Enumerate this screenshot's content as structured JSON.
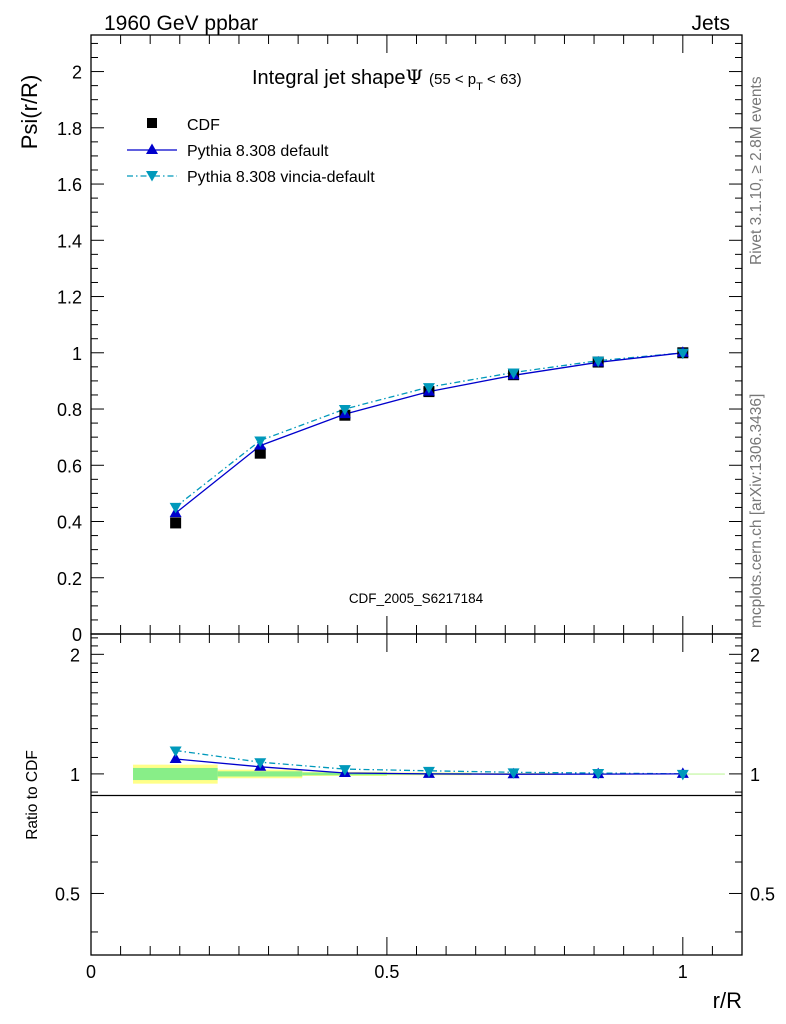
{
  "header": {
    "left": "1960 GeV ppbar",
    "right": "Jets"
  },
  "side_labels": {
    "rivet": "Rivet 3.1.10, ≥ 2.8M events",
    "mcplots": "mcplots.cern.ch [arXiv:1306.3436]"
  },
  "colors": {
    "cdf": "#000000",
    "pythia_default": "#0000cc",
    "pythia_vincia": "#0099bb",
    "band_outer": "#ffff88",
    "band_inner": "#88ee88"
  },
  "chart_data": [
    {
      "type": "line",
      "panel": "main",
      "title": "Integral jet shape Ψ (55 < p_T < 63)",
      "title_parts": {
        "main": "Integral jet shape",
        "symbol": "Ψ",
        "range_pre": "(55 < p",
        "range_sub": "T",
        "range_post": " < 63)"
      },
      "ylabel": "Psi(r/R)",
      "watermark": "CDF_2005_S6217184",
      "xlim": [
        0,
        1.1
      ],
      "ylim": [
        0,
        2.13
      ],
      "y_ticks": [
        0,
        0.2,
        0.4,
        0.6,
        0.8,
        1,
        1.2,
        1.4,
        1.6,
        1.8,
        2
      ],
      "y_tick_labels": [
        "0",
        "0.2",
        "0.4",
        "0.6",
        "0.8",
        "1",
        "1.2",
        "1.4",
        "1.6",
        "1.8",
        "2"
      ],
      "legend_position": "top-left",
      "x": [
        0.143,
        0.286,
        0.429,
        0.571,
        0.714,
        0.857,
        1.0
      ],
      "series": [
        {
          "name": "CDF",
          "marker": "square",
          "values": [
            0.395,
            0.643,
            0.778,
            0.862,
            0.922,
            0.967,
            1.0
          ]
        },
        {
          "name": "Pythia 8.308 default",
          "marker": "triangle-up",
          "line": "solid",
          "values": [
            0.43,
            0.67,
            0.782,
            0.862,
            0.92,
            0.966,
            1.0
          ]
        },
        {
          "name": "Pythia 8.308 vincia-default",
          "marker": "triangle-down",
          "line": "dash-dot",
          "values": [
            0.452,
            0.688,
            0.8,
            0.878,
            0.93,
            0.972,
            1.0
          ]
        }
      ]
    },
    {
      "type": "line",
      "panel": "ratio",
      "ylabel": "Ratio to CDF",
      "xlabel": "r/R",
      "xlim": [
        0,
        1.1
      ],
      "ylim": [
        0.35,
        2.25
      ],
      "x_ticks": [
        0,
        0.5,
        1
      ],
      "x_tick_labels": [
        "0",
        "0.5",
        "1"
      ],
      "y_tick_labels_shown": [
        "0.5",
        "1",
        "2"
      ],
      "x": [
        0.143,
        0.286,
        0.429,
        0.571,
        0.714,
        0.857,
        1.0
      ],
      "x_bin_edges": [
        0.071,
        0.214,
        0.357,
        0.5,
        0.643,
        0.786,
        0.929,
        1.071
      ],
      "band_outer": [
        0.055,
        0.025,
        0.012,
        0.008,
        0.005,
        0.003,
        0.001
      ],
      "band_inner": [
        0.035,
        0.015,
        0.008,
        0.005,
        0.003,
        0.002,
        0.001
      ],
      "series": [
        {
          "name": "Pythia 8.308 default",
          "values": [
            1.09,
            1.042,
            1.005,
            1.0,
            0.998,
            0.999,
            1.0
          ]
        },
        {
          "name": "Pythia 8.308 vincia-default",
          "values": [
            1.145,
            1.07,
            1.028,
            1.018,
            1.009,
            1.005,
            1.0
          ]
        }
      ]
    }
  ]
}
